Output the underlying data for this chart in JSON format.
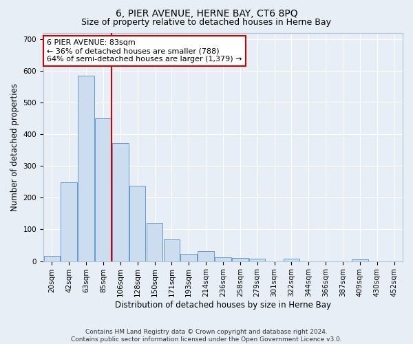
{
  "title": "6, PIER AVENUE, HERNE BAY, CT6 8PQ",
  "subtitle": "Size of property relative to detached houses in Herne Bay",
  "xlabel": "Distribution of detached houses by size in Herne Bay",
  "ylabel": "Number of detached properties",
  "bar_labels": [
    "20sqm",
    "42sqm",
    "63sqm",
    "85sqm",
    "106sqm",
    "128sqm",
    "150sqm",
    "171sqm",
    "193sqm",
    "214sqm",
    "236sqm",
    "258sqm",
    "279sqm",
    "301sqm",
    "322sqm",
    "344sqm",
    "366sqm",
    "387sqm",
    "409sqm",
    "430sqm",
    "452sqm"
  ],
  "bar_values": [
    16,
    248,
    585,
    450,
    372,
    238,
    120,
    68,
    22,
    32,
    13,
    10,
    8,
    0,
    8,
    0,
    0,
    0,
    5,
    0,
    0
  ],
  "bar_color": "#ccddf0",
  "bar_edge_color": "#6699cc",
  "vline_color": "#cc0000",
  "annotation_text": "6 PIER AVENUE: 83sqm\n← 36% of detached houses are smaller (788)\n64% of semi-detached houses are larger (1,379) →",
  "annotation_box_color": "#ffffff",
  "annotation_box_edge_color": "#cc0000",
  "ylim": [
    0,
    720
  ],
  "yticks": [
    0,
    100,
    200,
    300,
    400,
    500,
    600,
    700
  ],
  "bg_color": "#e8eef5",
  "plot_bg_color": "#e8eef5",
  "grid_color": "#ffffff",
  "footer": "Contains HM Land Registry data © Crown copyright and database right 2024.\nContains public sector information licensed under the Open Government Licence v3.0.",
  "title_fontsize": 10,
  "subtitle_fontsize": 9,
  "axis_label_fontsize": 8.5,
  "ylabel_fontsize": 8.5,
  "tick_fontsize": 7.5,
  "annotation_fontsize": 8,
  "footer_fontsize": 6.5
}
